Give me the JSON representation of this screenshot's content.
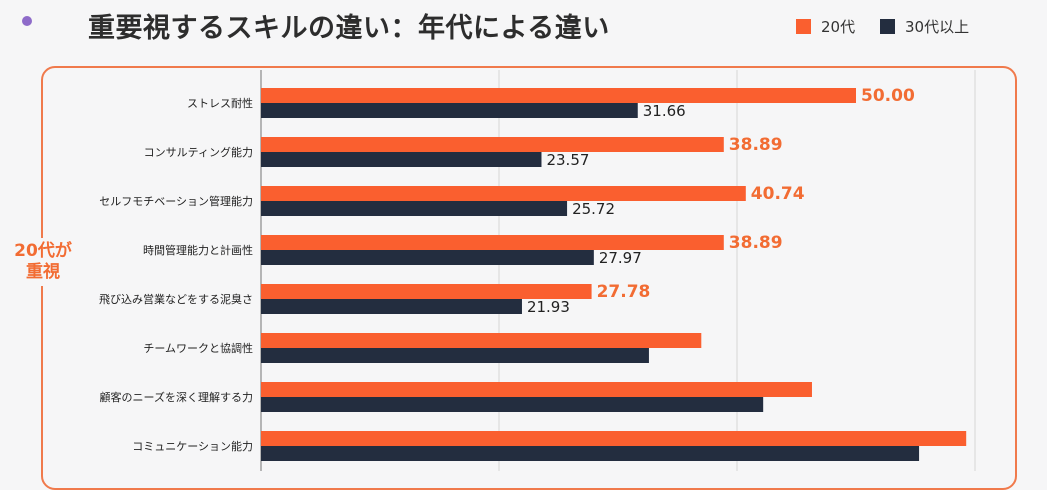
{
  "colors": {
    "orange": "#fa5f2f",
    "navy": "#232d3f",
    "accent": "#f26c33",
    "frame": "#f07a4c"
  },
  "chart_data": {
    "type": "bar",
    "orientation": "horizontal",
    "title": "重要視するスキルの違い：年代による違い",
    "categories": [
      "ストレス耐性",
      "コンサルティング能力",
      "セルフモチベーション管理能力",
      "時間管理能力と計画性",
      "飛び込み営業などをする泥臭さ",
      "チームワークと協調性",
      "顧客のニーズを深く理解する力",
      "コミュニケーション能力"
    ],
    "series": [
      {
        "name": "20代",
        "values": [
          50.0,
          38.89,
          40.74,
          38.89,
          27.78,
          37.0,
          46.3,
          59.26
        ],
        "labels": [
          "50.00",
          "38.89",
          "40.74",
          "38.89",
          "27.78",
          "",
          "",
          ""
        ]
      },
      {
        "name": "30代以上",
        "values": [
          31.66,
          23.57,
          25.72,
          27.97,
          21.93,
          32.6,
          42.2,
          55.3
        ],
        "labels": [
          "31.66",
          "23.57",
          "25.72",
          "27.97",
          "21.93",
          "",
          "",
          ""
        ]
      }
    ],
    "legend": "top-right",
    "grid": true,
    "xlim": [
      0,
      60
    ],
    "annotations": [
      "20代が",
      "重視"
    ]
  }
}
